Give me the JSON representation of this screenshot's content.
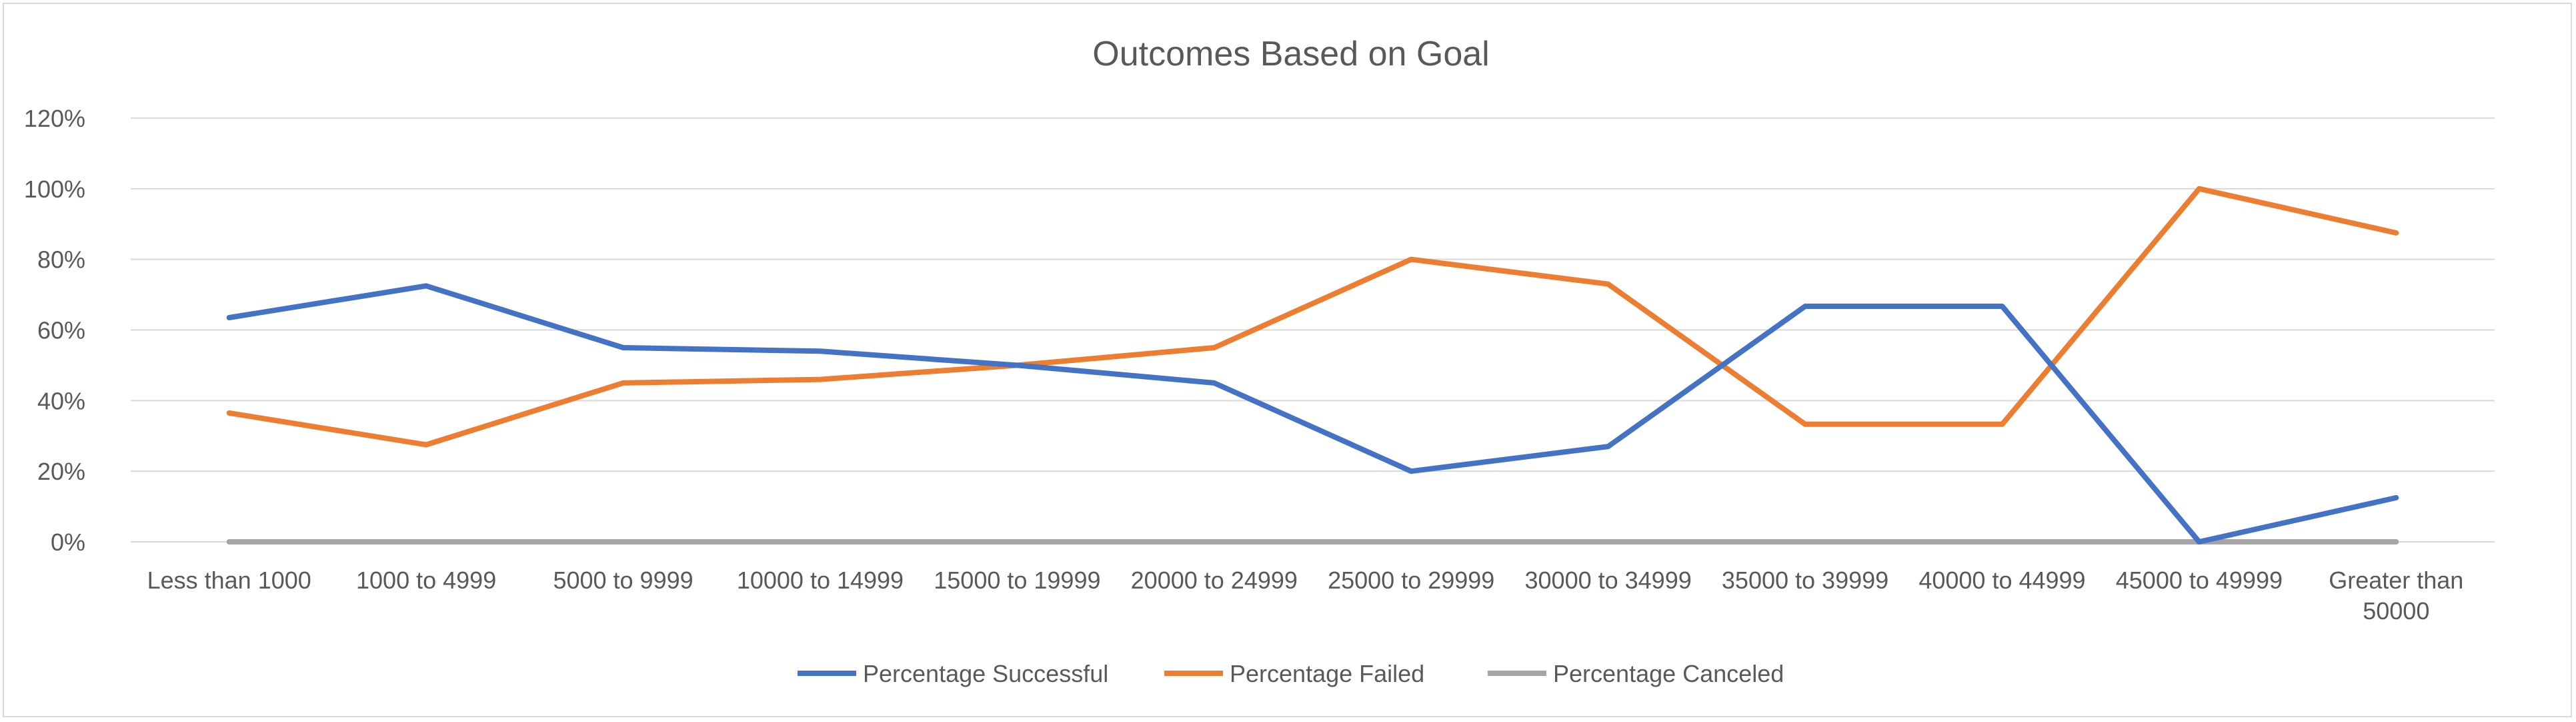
{
  "chart_data": {
    "type": "line",
    "title": "Outcomes Based on Goal",
    "categories": [
      [
        "Less than 1000"
      ],
      [
        "1000 to 4999"
      ],
      [
        "5000 to 9999"
      ],
      [
        "10000 to 14999"
      ],
      [
        "15000 to 19999"
      ],
      [
        "20000 to 24999"
      ],
      [
        "25000 to 29999"
      ],
      [
        "30000 to 34999"
      ],
      [
        "35000 to 39999"
      ],
      [
        "40000 to 44999"
      ],
      [
        "45000 to 49999"
      ],
      [
        "Greater than",
        "50000"
      ]
    ],
    "series": [
      {
        "name": "Percentage Successful",
        "color": "#4472c4",
        "values": [
          63.5,
          72.5,
          55,
          54,
          50,
          45,
          20,
          27,
          66.7,
          66.7,
          0,
          12.5
        ]
      },
      {
        "name": "Percentage Failed",
        "color": "#ed7d31",
        "values": [
          36.5,
          27.5,
          45,
          46,
          50,
          55,
          80,
          73,
          33.3,
          33.3,
          100,
          87.5
        ]
      },
      {
        "name": "Percentage Canceled",
        "color": "#a5a5a5",
        "values": [
          0,
          0,
          0,
          0,
          0,
          0,
          0,
          0,
          0,
          0,
          0,
          0
        ]
      }
    ],
    "ylim": [
      0,
      120
    ],
    "yticks": [
      "0%",
      "20%",
      "40%",
      "60%",
      "80%",
      "100%",
      "120%"
    ],
    "grid": true,
    "legend_position": "bottom"
  }
}
